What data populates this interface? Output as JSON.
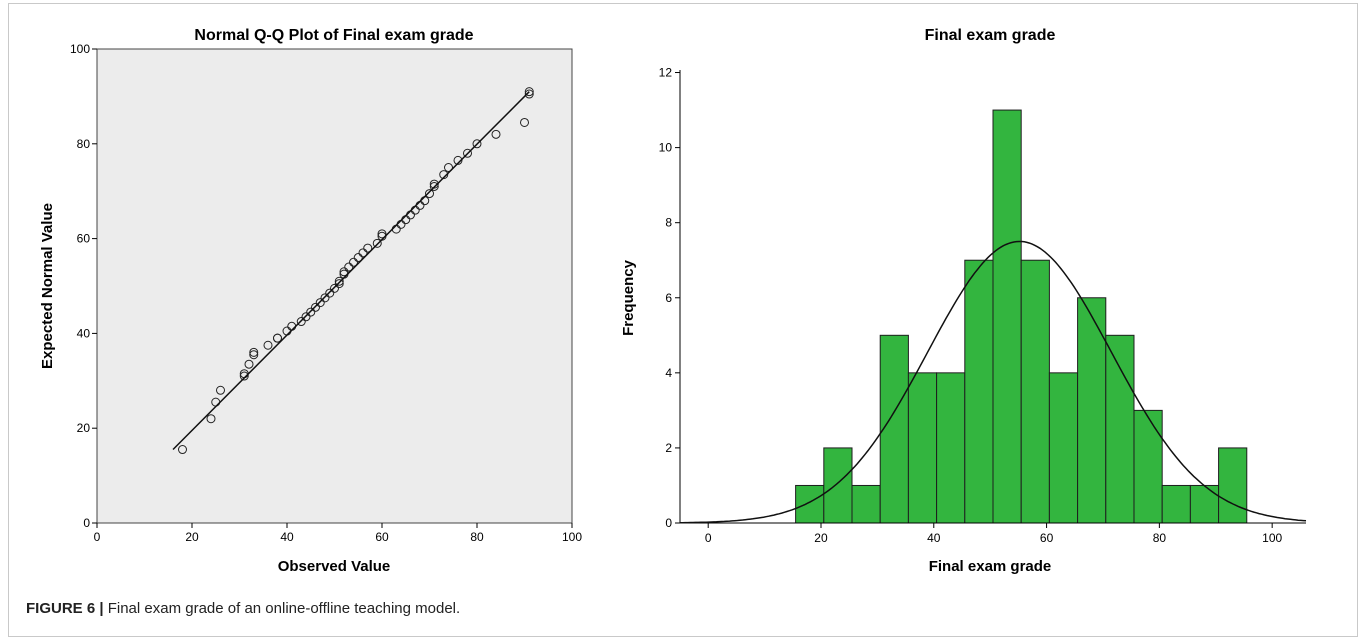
{
  "caption": {
    "label": "FIGURE 6 |",
    "text": "Final exam grade of an online-offline teaching model."
  },
  "colors": {
    "qq_background": "#ececec",
    "bar_fill": "#33b53f",
    "bar_stroke": "#1e1e1e",
    "curve": "#111111"
  },
  "chart_data": [
    {
      "type": "scatter",
      "title": "Normal Q-Q Plot of Final exam grade",
      "xlabel": "Observed Value",
      "ylabel": "Expected Normal Value",
      "xlim": [
        0,
        100
      ],
      "ylim": [
        0,
        100
      ],
      "xticks": [
        0,
        20,
        40,
        60,
        80,
        100
      ],
      "yticks": [
        0,
        20,
        40,
        60,
        80,
        100
      ],
      "reference_line": {
        "x": [
          16,
          91
        ],
        "y": [
          15.5,
          91
        ]
      },
      "points": [
        {
          "x": 18,
          "y": 15.5
        },
        {
          "x": 24,
          "y": 22
        },
        {
          "x": 25,
          "y": 25.5
        },
        {
          "x": 26,
          "y": 28
        },
        {
          "x": 31,
          "y": 31
        },
        {
          "x": 31,
          "y": 31.5
        },
        {
          "x": 32,
          "y": 33.5
        },
        {
          "x": 33,
          "y": 35.5
        },
        {
          "x": 33,
          "y": 36
        },
        {
          "x": 36,
          "y": 37.5
        },
        {
          "x": 38,
          "y": 39
        },
        {
          "x": 38,
          "y": 39
        },
        {
          "x": 40,
          "y": 40.5
        },
        {
          "x": 41,
          "y": 41.5
        },
        {
          "x": 43,
          "y": 42.5
        },
        {
          "x": 44,
          "y": 43.5
        },
        {
          "x": 45,
          "y": 44.5
        },
        {
          "x": 46,
          "y": 45.5
        },
        {
          "x": 47,
          "y": 46.5
        },
        {
          "x": 48,
          "y": 47.5
        },
        {
          "x": 49,
          "y": 48.5
        },
        {
          "x": 50,
          "y": 49.5
        },
        {
          "x": 51,
          "y": 50.5
        },
        {
          "x": 51,
          "y": 51
        },
        {
          "x": 52,
          "y": 52.5
        },
        {
          "x": 52,
          "y": 53
        },
        {
          "x": 53,
          "y": 54
        },
        {
          "x": 54,
          "y": 55
        },
        {
          "x": 55,
          "y": 56
        },
        {
          "x": 56,
          "y": 57
        },
        {
          "x": 57,
          "y": 58
        },
        {
          "x": 59,
          "y": 59
        },
        {
          "x": 60,
          "y": 60.5
        },
        {
          "x": 60,
          "y": 61
        },
        {
          "x": 63,
          "y": 62
        },
        {
          "x": 64,
          "y": 63
        },
        {
          "x": 65,
          "y": 64
        },
        {
          "x": 66,
          "y": 65
        },
        {
          "x": 67,
          "y": 66
        },
        {
          "x": 68,
          "y": 67
        },
        {
          "x": 69,
          "y": 68
        },
        {
          "x": 70,
          "y": 69.5
        },
        {
          "x": 71,
          "y": 71
        },
        {
          "x": 71,
          "y": 71.5
        },
        {
          "x": 73,
          "y": 73.5
        },
        {
          "x": 74,
          "y": 75
        },
        {
          "x": 76,
          "y": 76.5
        },
        {
          "x": 78,
          "y": 78
        },
        {
          "x": 80,
          "y": 80
        },
        {
          "x": 84,
          "y": 82
        },
        {
          "x": 90,
          "y": 84.5
        },
        {
          "x": 91,
          "y": 90.5
        },
        {
          "x": 91,
          "y": 91
        }
      ]
    },
    {
      "type": "bar",
      "title": "Final exam grade",
      "xlabel": "Final exam grade",
      "ylabel": "Frequency",
      "xlim": [
        -5,
        106
      ],
      "ylim": [
        0,
        12.6
      ],
      "xticks": [
        0,
        20,
        40,
        60,
        80,
        100
      ],
      "yticks": [
        0,
        2,
        4,
        6,
        8,
        10,
        12
      ],
      "bin_edges": [
        15.5,
        20.5,
        25.5,
        30.5,
        35.5,
        40.5,
        45.5,
        50.5,
        55.5,
        60.5,
        65.5,
        70.5,
        75.5,
        80.5,
        85.5,
        90.5,
        95.5
      ],
      "values": [
        1,
        2,
        1,
        5,
        4,
        4,
        7,
        11,
        7,
        4,
        6,
        5,
        3,
        1,
        1,
        2
      ],
      "normal_curve": {
        "mean": 55.2,
        "sd": 16.3,
        "peak": 7.5
      }
    }
  ]
}
